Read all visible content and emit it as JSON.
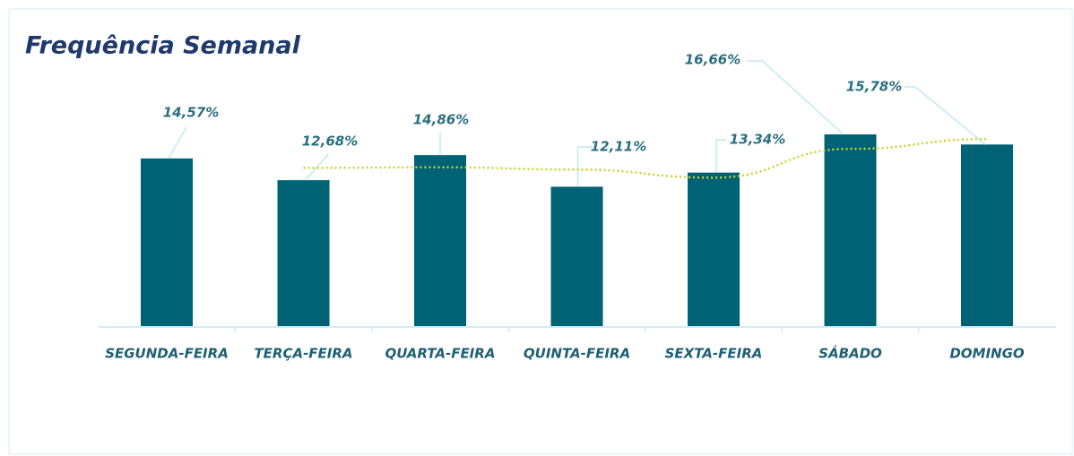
{
  "chart_data": {
    "type": "bar",
    "title": "Frequência Semanal",
    "categories": [
      "SEGUNDA-FEIRA",
      "TERÇA-FEIRA",
      "QUARTA-FEIRA",
      "QUINTA-FEIRA",
      "SEXTA-FEIRA",
      "SÁBADO",
      "DOMINGO"
    ],
    "values": [
      14.57,
      12.68,
      14.86,
      12.11,
      13.34,
      16.66,
      15.78
    ],
    "value_labels": [
      "14,57%",
      "12,68%",
      "14,86%",
      "12,11%",
      "13,34%",
      "16,66%",
      "15,78%"
    ],
    "color": "#006375",
    "trend": {
      "color": "#c8d42a",
      "values": [
        null,
        13.75,
        13.8,
        13.6,
        12.9,
        15.4,
        16.25
      ]
    }
  }
}
